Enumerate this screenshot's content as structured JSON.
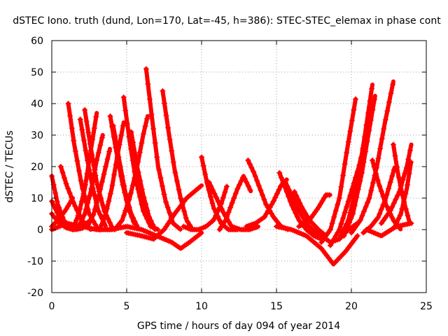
{
  "chart_data": {
    "type": "scatter",
    "title": "dSTEC Iono. truth (dund, Lon=170, Lat=-45, h=386): STEC-STEC_elemax in phase cont",
    "xlabel": "GPS time / hours of day 094 of year 2014",
    "ylabel": "dSTEC  / TECUs",
    "xlim": [
      0,
      25
    ],
    "ylim": [
      -20,
      60
    ],
    "x_ticks": [
      "0",
      "5",
      "10",
      "15",
      "20",
      "25"
    ],
    "y_ticks": [
      "-20",
      "-10",
      "0",
      "10",
      "20",
      "30",
      "40",
      "50",
      "60"
    ],
    "grid": true,
    "marker": "+",
    "color": "#ff0000",
    "series": [
      {
        "x": [
          0.0,
          0.4,
          0.8,
          1.3
        ],
        "y": [
          17,
          8,
          3,
          0
        ]
      },
      {
        "x": [
          0.0,
          0.5,
          1.0,
          1.6,
          2.1
        ],
        "y": [
          9,
          4,
          1,
          0,
          0.5
        ]
      },
      {
        "x": [
          0.0,
          0.5,
          1.0,
          1.5,
          2.0,
          2.6
        ],
        "y": [
          5,
          2,
          0.5,
          0,
          1,
          3
        ]
      },
      {
        "x": [
          0.0,
          0.4,
          0.9,
          1.4
        ],
        "y": [
          1,
          3,
          6,
          10
        ]
      },
      {
        "x": [
          0.6,
          1.0,
          1.5,
          2.0,
          2.6
        ],
        "y": [
          20,
          14,
          8,
          3,
          0
        ]
      },
      {
        "x": [
          1.1,
          1.5,
          2.0,
          2.5,
          3.1
        ],
        "y": [
          40,
          27,
          14,
          5,
          0
        ]
      },
      {
        "x": [
          1.9,
          2.3,
          2.7,
          3.1,
          3.6
        ],
        "y": [
          35,
          24,
          14,
          6,
          1
        ]
      },
      {
        "x": [
          2.2,
          2.6,
          3.0,
          3.5,
          4.0
        ],
        "y": [
          38,
          26,
          15,
          6,
          1
        ]
      },
      {
        "x": [
          1.4,
          1.8,
          2.2,
          2.6,
          3.0
        ],
        "y": [
          0,
          5,
          13,
          25,
          37
        ]
      },
      {
        "x": [
          1.8,
          2.2,
          2.6,
          3.0,
          3.4
        ],
        "y": [
          1,
          5,
          12,
          22,
          30
        ]
      },
      {
        "x": [
          2.4,
          2.8,
          3.2,
          3.6,
          3.9
        ],
        "y": [
          1,
          5,
          12,
          20,
          26
        ]
      },
      {
        "x": [
          3.2,
          3.6,
          4.0,
          4.4,
          4.8
        ],
        "y": [
          0,
          5,
          13,
          24,
          34
        ]
      },
      {
        "x": [
          3.9,
          4.3,
          4.7,
          5.1,
          5.5
        ],
        "y": [
          36,
          25,
          15,
          7,
          2
        ]
      },
      {
        "x": [
          4.1,
          4.5,
          4.9,
          5.3,
          5.7
        ],
        "y": [
          33,
          22,
          12,
          5,
          1
        ]
      },
      {
        "x": [
          4.8,
          5.2,
          5.6,
          6.1,
          6.6,
          7.1
        ],
        "y": [
          42,
          28,
          16,
          6,
          1,
          0
        ]
      },
      {
        "x": [
          5.3,
          5.7,
          6.1,
          6.5,
          6.9
        ],
        "y": [
          31,
          20,
          11,
          4,
          0
        ]
      },
      {
        "x": [
          4.2,
          4.7,
          5.2,
          5.7,
          6.1,
          6.4
        ],
        "y": [
          0,
          3,
          10,
          20,
          30,
          36
        ]
      },
      {
        "x": [
          6.3,
          6.7,
          7.1,
          7.6,
          8.1,
          8.6
        ],
        "y": [
          51,
          35,
          20,
          9,
          2,
          0
        ]
      },
      {
        "x": [
          7.4,
          7.8,
          8.2,
          8.6,
          9.0,
          9.4
        ],
        "y": [
          44,
          31,
          19,
          10,
          3,
          0
        ]
      },
      {
        "x": [
          0.0,
          1.0,
          2.0,
          3.0,
          4.0,
          5.0,
          6.0,
          7.0,
          8.0,
          8.6,
          9.2,
          10.0
        ],
        "y": [
          0,
          2,
          1,
          0,
          0,
          1,
          0,
          -2,
          -4,
          -6,
          -4,
          -1
        ]
      },
      {
        "x": [
          5.0,
          6.0,
          6.8,
          7.5,
          8.2,
          9.0,
          10.0
        ],
        "y": [
          -1,
          -2,
          -3,
          0,
          5,
          10,
          14
        ]
      },
      {
        "x": [
          10.0,
          10.4,
          10.8,
          11.3,
          11.8,
          12.4
        ],
        "y": [
          23,
          14,
          7,
          2,
          0,
          0
        ]
      },
      {
        "x": [
          8.8,
          9.3,
          9.8,
          10.3,
          10.8,
          11.3,
          11.7
        ],
        "y": [
          1,
          0,
          0,
          1,
          3,
          8,
          14
        ]
      },
      {
        "x": [
          10.5,
          11.0,
          11.5,
          12.0,
          12.6,
          13.2,
          13.8
        ],
        "y": [
          15,
          10,
          5,
          1,
          0,
          0,
          1
        ]
      },
      {
        "x": [
          11.2,
          11.6,
          12.0,
          12.4,
          12.8,
          13.3
        ],
        "y": [
          0,
          3,
          8,
          13,
          17,
          12
        ]
      },
      {
        "x": [
          13.1,
          13.5,
          13.9,
          14.3,
          14.8,
          15.3,
          15.8
        ],
        "y": [
          22,
          18,
          13,
          8,
          4,
          1,
          0
        ]
      },
      {
        "x": [
          13.0,
          13.6,
          14.2,
          14.8,
          15.3,
          15.7
        ],
        "y": [
          1,
          2,
          4,
          9,
          14,
          16
        ]
      },
      {
        "x": [
          15.2,
          15.6,
          16.0,
          16.5,
          17.0,
          17.5,
          18.0
        ],
        "y": [
          18,
          13,
          8,
          3,
          0,
          -2,
          -3
        ]
      },
      {
        "x": [
          15.6,
          16.0,
          16.5,
          17.0,
          17.6,
          18.2
        ],
        "y": [
          15,
          11,
          6,
          2,
          -1,
          -3
        ]
      },
      {
        "x": [
          16.2,
          16.7,
          17.2,
          17.8,
          18.3
        ],
        "y": [
          12,
          7,
          3,
          0,
          -2
        ]
      },
      {
        "x": [
          15.0,
          16.0,
          17.0,
          18.0,
          18.8,
          19.6,
          20.4
        ],
        "y": [
          1,
          0,
          -2,
          -6,
          -11,
          -7,
          -2
        ]
      },
      {
        "x": [
          16.5,
          17.2,
          17.8,
          18.3,
          18.6
        ],
        "y": [
          1,
          3,
          7,
          11,
          11
        ]
      },
      {
        "x": [
          17.5,
          18.0,
          18.6,
          19.2,
          19.8,
          20.4
        ],
        "y": [
          0,
          -2,
          -4,
          -3,
          0,
          2
        ]
      },
      {
        "x": [
          18.0,
          18.6,
          19.2,
          19.7,
          20.3
        ],
        "y": [
          -4,
          0,
          10,
          25,
          42
        ]
      },
      {
        "x": [
          18.6,
          19.2,
          19.8,
          20.5,
          21.1
        ],
        "y": [
          -5,
          0,
          9,
          20,
          32
        ]
      },
      {
        "x": [
          19.2,
          19.8,
          20.4,
          20.9,
          21.4
        ],
        "y": [
          -3,
          3,
          15,
          30,
          46
        ]
      },
      {
        "x": [
          19.5,
          20.1,
          20.7,
          21.2,
          21.6
        ],
        "y": [
          -2,
          5,
          18,
          32,
          43
        ]
      },
      {
        "x": [
          20.0,
          20.6,
          21.2,
          21.7,
          22.2,
          22.8
        ],
        "y": [
          -1,
          3,
          10,
          20,
          33,
          47
        ]
      },
      {
        "x": [
          20.8,
          21.3,
          21.8,
          22.3,
          22.9
        ],
        "y": [
          -1,
          1,
          4,
          10,
          20
        ]
      },
      {
        "x": [
          21.4,
          21.8,
          22.3,
          22.8,
          23.3
        ],
        "y": [
          22,
          15,
          8,
          3,
          0
        ]
      },
      {
        "x": [
          21.0,
          22.0,
          23.0,
          24.0
        ],
        "y": [
          0,
          -2,
          1,
          2
        ]
      },
      {
        "x": [
          22.8,
          23.1,
          23.5,
          23.9
        ],
        "y": [
          27,
          18,
          9,
          2
        ]
      },
      {
        "x": [
          22.0,
          22.6,
          23.2,
          23.7,
          24.0
        ],
        "y": [
          2,
          6,
          12,
          20,
          27
        ]
      },
      {
        "x": [
          22.9,
          23.3,
          23.7,
          24.0
        ],
        "y": [
          1,
          5,
          13,
          22
        ]
      }
    ]
  }
}
